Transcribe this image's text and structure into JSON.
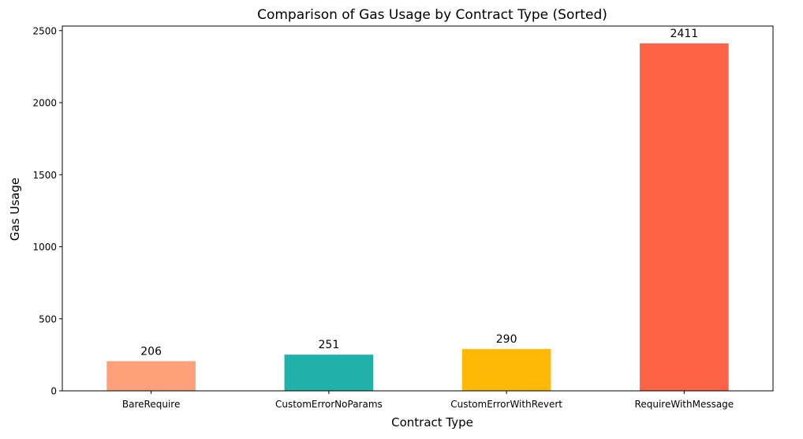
{
  "chart_data": {
    "type": "bar",
    "title": "Comparison of Gas Usage by Contract Type (Sorted)",
    "xlabel": "Contract Type",
    "ylabel": "Gas Usage",
    "categories": [
      "BareRequire",
      "CustomErrorNoParams",
      "CustomErrorWithRevert",
      "RequireWithMessage"
    ],
    "values": [
      206,
      251,
      290,
      2411
    ],
    "data_labels": [
      "206",
      "251",
      "290",
      "2411"
    ],
    "colors": [
      "#FFA07A",
      "#20B2AA",
      "#FDB906",
      "#FF6347"
    ],
    "ylim": [
      0,
      2531.55
    ],
    "yticks": [
      0,
      500,
      1000,
      1500,
      2000,
      2500
    ],
    "ytick_labels": [
      "0",
      "500",
      "1000",
      "1500",
      "2000",
      "2500"
    ],
    "grid": false,
    "legend": "none"
  }
}
